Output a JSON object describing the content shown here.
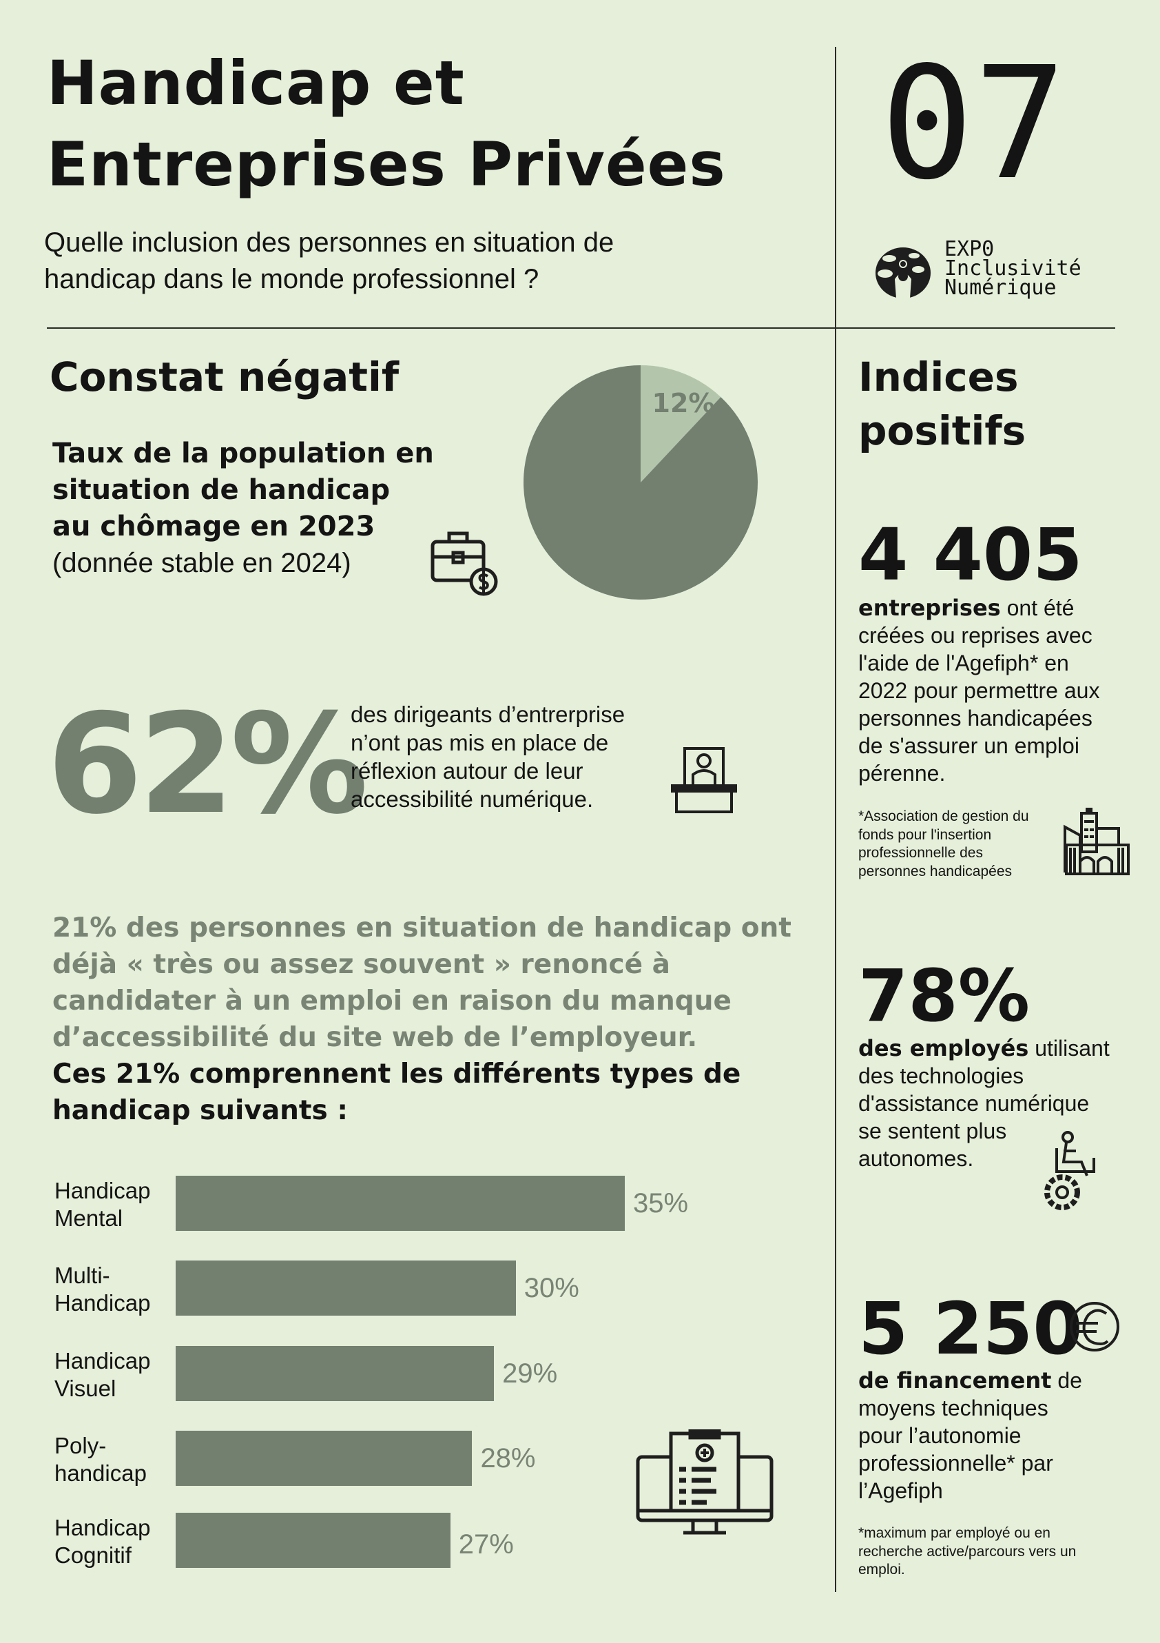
{
  "header": {
    "title_line1": "Handicap et",
    "title_line2": "Entreprises Privées",
    "subtitle_line1": "Quelle inclusion des personnes en situation de",
    "subtitle_line2": "handicap dans le monde professionnel ?",
    "number": "07",
    "logo": {
      "line1": "EXP0",
      "line2": "Inclusivité",
      "line3": "Numérique"
    }
  },
  "colors": {
    "background": "#e5efd9",
    "accent": "#738070",
    "accent_light": "#b3c6ac",
    "text_gray": "#7a8475"
  },
  "left": {
    "section_title": "Constat négatif",
    "taux": {
      "line1": "Taux de la population en",
      "line2": "situation de handicap",
      "line3": "au chômage en 2023",
      "line4": "(donnée stable en 2024)",
      "icon": "briefcase-dollar-icon"
    },
    "stat62": {
      "value": "62%",
      "line1": "des dirigeants d’entrerprise",
      "line2": "n’ont pas mis en place de",
      "line3": "réflexion autour de leur",
      "line4": "accessibilité numérique.",
      "icon": "manager-desk-icon"
    },
    "gray_paragraph": [
      "21% des personnes en situation de handicap ont",
      "déjà « très ou assez souvent » renoncé à",
      "candidater à un emploi en raison du manque",
      "d’accessibilité du site web de l’employeur."
    ],
    "black_paragraph": [
      "Ces 21% comprennent les différents types de",
      "handicap suivants :"
    ],
    "chart_icon": "medical-monitor-icon"
  },
  "chart_data": [
    {
      "type": "pie",
      "slices": [
        {
          "label": "12%",
          "value": 12,
          "color": "#b3c6ac"
        },
        {
          "value": 88,
          "color": "#738070"
        }
      ]
    },
    {
      "type": "bar",
      "orientation": "horizontal",
      "categories": [
        [
          "Handicap",
          "Mental"
        ],
        [
          "Multi-",
          "Handicap"
        ],
        [
          "Handicap",
          "Visuel"
        ],
        [
          "Poly-",
          "handicap"
        ],
        [
          "Handicap",
          "Cognitif"
        ]
      ],
      "values": [
        35,
        30,
        29,
        28,
        27
      ],
      "value_labels": [
        "35%",
        "30%",
        "29%",
        "28%",
        "27%"
      ],
      "color": "#738070"
    }
  ],
  "right": {
    "section_title_line1": "Indices",
    "section_title_line2": "positifs",
    "stat1": {
      "value": "4 405",
      "bold": "entreprises",
      "lines": [
        " ont été",
        "créées ou reprises avec",
        "l'aide de l'Agefiph* en",
        "2022 pour permettre aux",
        "personnes handicapées",
        "de s'assurer un emploi",
        "pérenne."
      ],
      "footnote": [
        "*Association de gestion du",
        "fonds pour l'insertion",
        "professionnelle des",
        "personnes handicapées"
      ],
      "icon": "building-icon"
    },
    "stat2": {
      "value": "78%",
      "bold": "des employés",
      "lines": [
        " utilisant",
        "des technologies",
        "d'assistance numérique",
        "se sentent plus",
        "autonomes."
      ],
      "icon": "wheelchair-gear-icon"
    },
    "stat3": {
      "value": "5 250",
      "bold": "de financement",
      "lines": [
        " de",
        "moyens techniques",
        "pour l’autonomie",
        "professionnelle* par",
        "l’Agefiph"
      ],
      "footnote": [
        "*maximum par employé ou en",
        "recherche active/parcours vers un",
        "emploi."
      ],
      "icon": "euro-icon"
    }
  }
}
